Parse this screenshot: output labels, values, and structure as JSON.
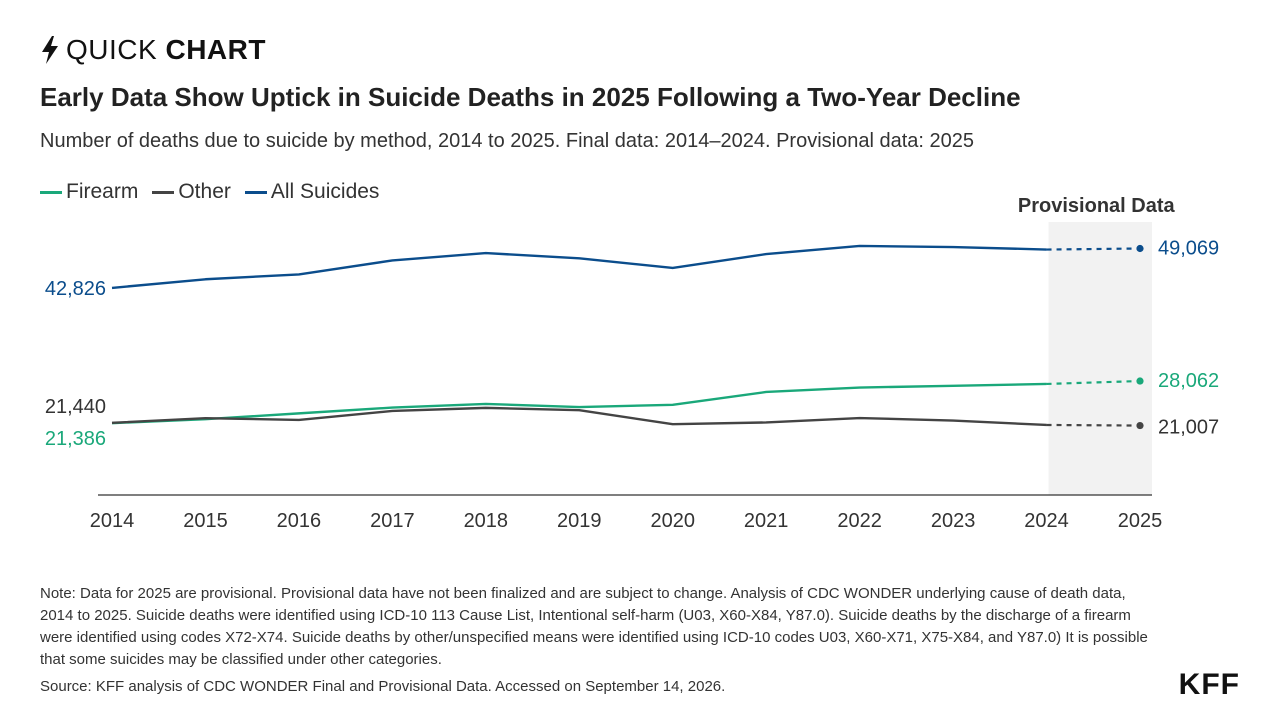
{
  "brand": {
    "prefix": "QUICK",
    "bold": "CHART",
    "logo": "KFF"
  },
  "title": "Early Data Show Uptick in Suicide Deaths in 2025 Following a Two-Year Decline",
  "subtitle": "Number of deaths due to suicide by method, 2014 to 2025. Final data: 2014–2024. Provisional data: 2025",
  "note": "Note: Data for 2025 are provisional. Provisional data have not been finalized and are subject to change. Analysis of CDC WONDER underlying cause of death data, 2014 to 2025. Suicide deaths were identified using ICD-10 113 Cause List, Intentional self-harm (U03, X60-X84, Y87.0). Suicide deaths by the discharge of a firearm were identified using codes X72-X74. Suicide deaths by other/unspecified means were identified using ICD-10 codes U03, X60-X71, X75-X84, and Y87.0) It is possible that some suicides may be classified under other categories.",
  "source": "Source: KFF analysis of CDC WONDER Final and Provisional Data. Accessed on September 14, 2026.",
  "chart_data": {
    "type": "line",
    "title": "Early Data Show Uptick in Suicide Deaths in 2025 Following a Two-Year Decline",
    "xlabel": "",
    "ylabel": "",
    "x": [
      "2014",
      "2015",
      "2016",
      "2017",
      "2018",
      "2019",
      "2020",
      "2021",
      "2022",
      "2023",
      "2024",
      "2025"
    ],
    "ylim": [
      10000,
      52000
    ],
    "grid": false,
    "legend_position": "top-left",
    "shaded_region": {
      "label": "Provisional Data",
      "x_start": "2024",
      "x_end": "2025"
    },
    "provisional_from": "2024",
    "series": [
      {
        "name": "Firearm",
        "color": "#1aa87a",
        "values": [
          21386,
          22018,
          22938,
          23854,
          24432,
          23941,
          24292,
          26328,
          27032,
          27300,
          27600,
          28062
        ],
        "labels": {
          "first": "21,386",
          "last": "28,062"
        }
      },
      {
        "name": "Other",
        "color": "#444444",
        "values": [
          21440,
          22175,
          21900,
          23319,
          23808,
          23444,
          21218,
          21500,
          22200,
          21800,
          21100,
          21007
        ],
        "labels": {
          "first": "21,440",
          "last": "21,007"
        }
      },
      {
        "name": "All Suicides",
        "color": "#0b4d8c",
        "values": [
          42826,
          44193,
          44965,
          47173,
          48344,
          47511,
          45979,
          48183,
          49476,
          49300,
          48900,
          49069
        ],
        "labels": {
          "first": "42,826",
          "last": "49,069"
        }
      }
    ]
  }
}
